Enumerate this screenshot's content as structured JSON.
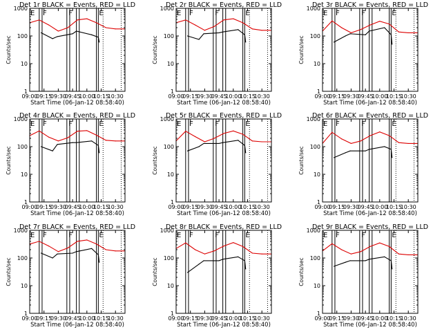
{
  "colors": {
    "events": "#000000",
    "lld": "#dd0000",
    "axes": "#000000",
    "background": "#ffffff"
  },
  "chart_data": [
    {
      "type": "line",
      "title": "Det 1r BLACK = Events, RED = LLD",
      "xlabel": "Start Time (06-Jan-12 08:58:40)",
      "ylabel": "Counts/sec",
      "xlim": [
        "09:00",
        "10:40"
      ],
      "ylim": [
        1,
        1000
      ],
      "yscale": "log",
      "x_ticks": [
        "09:00",
        "09:15",
        "09:30",
        "09:45",
        "10:00",
        "10:15",
        "10:30"
      ],
      "y_ticks": [
        "1",
        "10",
        "100",
        "1000"
      ],
      "flags": [
        {
          "label": "E",
          "time": "09:00"
        },
        {
          "label": "F",
          "time": "09:13"
        },
        {
          "label": "F",
          "time": "09:40"
        },
        {
          "label": "E",
          "time": "10:12"
        }
      ],
      "intervals": [
        [
          "09:10",
          "09:13"
        ],
        [
          "09:39",
          "09:42"
        ],
        [
          "09:49",
          "09:52"
        ],
        [
          "10:10",
          "10:12"
        ]
      ],
      "dotted": [
        "10:17",
        "10:36"
      ],
      "series": [
        {
          "name": "Events",
          "color": "#000000",
          "x": [
            "09:12",
            "09:24",
            "09:29",
            "09:45",
            "09:49",
            "10:05",
            "10:12",
            "10:13"
          ],
          "y": [
            130,
            80,
            95,
            120,
            150,
            110,
            90,
            60
          ]
        },
        {
          "name": "LLD",
          "color": "#dd0000",
          "x": [
            "09:00",
            "09:10",
            "09:20",
            "09:30",
            "09:40",
            "09:50",
            "10:00",
            "10:10",
            "10:20",
            "10:30",
            "10:40"
          ],
          "y": [
            300,
            380,
            250,
            150,
            200,
            380,
            420,
            300,
            200,
            180,
            180
          ]
        }
      ]
    },
    {
      "type": "line",
      "title": "Det 2r BLACK = Events, RED = LLD",
      "xlabel": "Start Time (06-Jan-12 08:58:40)",
      "ylabel": "Counts/sec",
      "xlim": [
        "09:00",
        "10:40"
      ],
      "ylim": [
        1,
        1000
      ],
      "yscale": "log",
      "x_ticks": [
        "09:00",
        "09:15",
        "09:30",
        "09:45",
        "10:00",
        "10:15",
        "10:30"
      ],
      "y_ticks": [
        "1",
        "10",
        "100",
        "1000"
      ],
      "flags": [
        {
          "label": "E",
          "time": "09:00"
        },
        {
          "label": "F",
          "time": "09:13"
        },
        {
          "label": "F",
          "time": "09:40"
        },
        {
          "label": "E",
          "time": "10:12"
        }
      ],
      "intervals": [
        [
          "09:10",
          "09:13"
        ],
        [
          "09:39",
          "09:42"
        ],
        [
          "09:49",
          "09:52"
        ],
        [
          "10:10",
          "10:12"
        ]
      ],
      "dotted": [
        "10:17",
        "10:36"
      ],
      "series": [
        {
          "name": "Events",
          "color": "#000000",
          "x": [
            "09:12",
            "09:24",
            "09:29",
            "09:45",
            "09:49",
            "10:05",
            "10:12",
            "10:13"
          ],
          "y": [
            100,
            75,
            120,
            130,
            140,
            170,
            110,
            60
          ]
        },
        {
          "name": "LLD",
          "color": "#dd0000",
          "x": [
            "09:00",
            "09:10",
            "09:20",
            "09:30",
            "09:40",
            "09:50",
            "10:00",
            "10:10",
            "10:20",
            "10:30",
            "10:40"
          ],
          "y": [
            300,
            380,
            250,
            160,
            220,
            380,
            420,
            300,
            180,
            160,
            160
          ]
        }
      ]
    },
    {
      "type": "line",
      "title": "Det 3r BLACK = Events, RED = LLD",
      "xlabel": "Start Time (06-Jan-12 08:58:40)",
      "ylabel": "Counts/sec",
      "xlim": [
        "09:00",
        "10:40"
      ],
      "ylim": [
        1,
        1000
      ],
      "yscale": "log",
      "x_ticks": [
        "09:00",
        "09:15",
        "09:30",
        "09:45",
        "10:00",
        "10:15",
        "10:30"
      ],
      "y_ticks": [
        "1",
        "10",
        "100",
        "1000"
      ],
      "flags": [
        {
          "label": "E",
          "time": "09:00"
        },
        {
          "label": "F",
          "time": "09:13"
        },
        {
          "label": "F",
          "time": "09:40"
        },
        {
          "label": "E",
          "time": "10:12"
        }
      ],
      "intervals": [
        [
          "09:10",
          "09:13"
        ],
        [
          "09:39",
          "09:42"
        ],
        [
          "09:49",
          "09:52"
        ],
        [
          "10:10",
          "10:12"
        ]
      ],
      "dotted": [
        "10:17",
        "10:36"
      ],
      "series": [
        {
          "name": "Events",
          "color": "#000000",
          "x": [
            "09:12",
            "09:24",
            "09:29",
            "09:45",
            "09:49",
            "10:05",
            "10:12",
            "10:13"
          ],
          "y": [
            60,
            100,
            120,
            110,
            150,
            200,
            110,
            50
          ]
        },
        {
          "name": "LLD",
          "color": "#dd0000",
          "x": [
            "09:00",
            "09:10",
            "09:20",
            "09:30",
            "09:40",
            "09:50",
            "10:00",
            "10:10",
            "10:20",
            "10:30",
            "10:40"
          ],
          "y": [
            150,
            350,
            200,
            130,
            170,
            250,
            340,
            270,
            140,
            130,
            130
          ]
        }
      ]
    },
    {
      "type": "line",
      "title": "Det 4r BLACK = Events, RED = LLD",
      "xlabel": "Start Time (06-Jan-12 08:58:40)",
      "ylabel": "Counts/sec",
      "xlim": [
        "09:00",
        "10:40"
      ],
      "ylim": [
        1,
        1000
      ],
      "yscale": "log",
      "x_ticks": [
        "09:00",
        "09:15",
        "09:30",
        "09:45",
        "10:00",
        "10:15",
        "10:30"
      ],
      "y_ticks": [
        "1",
        "10",
        "100",
        "1000"
      ],
      "flags": [
        {
          "label": "E",
          "time": "09:00"
        },
        {
          "label": "F",
          "time": "09:13"
        },
        {
          "label": "F",
          "time": "09:40"
        },
        {
          "label": "E",
          "time": "10:12"
        }
      ],
      "intervals": [
        [
          "09:10",
          "09:13"
        ],
        [
          "09:39",
          "09:42"
        ],
        [
          "09:49",
          "09:52"
        ],
        [
          "10:10",
          "10:12"
        ]
      ],
      "dotted": [
        "10:17",
        "10:36"
      ],
      "series": [
        {
          "name": "Events",
          "color": "#000000",
          "x": [
            "09:12",
            "09:24",
            "09:29",
            "09:45",
            "09:49",
            "10:05",
            "10:12",
            "10:13"
          ],
          "y": [
            100,
            70,
            120,
            140,
            140,
            160,
            110,
            60
          ]
        },
        {
          "name": "LLD",
          "color": "#dd0000",
          "x": [
            "09:00",
            "09:10",
            "09:20",
            "09:30",
            "09:40",
            "09:50",
            "10:00",
            "10:10",
            "10:20",
            "10:30",
            "10:40"
          ],
          "y": [
            250,
            370,
            220,
            160,
            210,
            360,
            380,
            260,
            170,
            160,
            160
          ]
        }
      ]
    },
    {
      "type": "line",
      "title": "Det 5r BLACK = Events, RED = LLD",
      "xlabel": "Start Time (06-Jan-12 08:58:40)",
      "ylabel": "Counts/sec",
      "xlim": [
        "09:00",
        "10:40"
      ],
      "ylim": [
        1,
        1000
      ],
      "yscale": "log",
      "x_ticks": [
        "09:00",
        "09:15",
        "09:30",
        "09:45",
        "10:00",
        "10:15",
        "10:30"
      ],
      "y_ticks": [
        "1",
        "10",
        "100",
        "1000"
      ],
      "flags": [
        {
          "label": "E",
          "time": "09:00"
        },
        {
          "label": "F",
          "time": "09:13"
        },
        {
          "label": "F",
          "time": "09:40"
        },
        {
          "label": "E",
          "time": "10:12"
        }
      ],
      "intervals": [
        [
          "09:10",
          "09:13"
        ],
        [
          "09:39",
          "09:42"
        ],
        [
          "09:49",
          "09:52"
        ],
        [
          "10:10",
          "10:12"
        ]
      ],
      "dotted": [
        "10:17",
        "10:36"
      ],
      "series": [
        {
          "name": "Events",
          "color": "#000000",
          "x": [
            "09:12",
            "09:24",
            "09:29",
            "09:45",
            "09:49",
            "10:05",
            "10:12",
            "10:13"
          ],
          "y": [
            70,
            100,
            130,
            130,
            140,
            170,
            110,
            60
          ]
        },
        {
          "name": "LLD",
          "color": "#dd0000",
          "x": [
            "09:00",
            "09:10",
            "09:20",
            "09:30",
            "09:40",
            "09:50",
            "10:00",
            "10:10",
            "10:20",
            "10:30",
            "10:40"
          ],
          "y": [
            160,
            360,
            230,
            150,
            200,
            300,
            370,
            280,
            160,
            150,
            150
          ]
        }
      ]
    },
    {
      "type": "line",
      "title": "Det 6r BLACK = Events, RED = LLD",
      "xlabel": "Start Time (06-Jan-12 08:58:40)",
      "ylabel": "Counts/sec",
      "xlim": [
        "09:00",
        "10:40"
      ],
      "ylim": [
        1,
        1000
      ],
      "yscale": "log",
      "x_ticks": [
        "09:00",
        "09:15",
        "09:30",
        "09:45",
        "10:00",
        "10:15",
        "10:30"
      ],
      "y_ticks": [
        "1",
        "10",
        "100",
        "1000"
      ],
      "flags": [
        {
          "label": "E",
          "time": "09:00"
        },
        {
          "label": "F",
          "time": "09:13"
        },
        {
          "label": "F",
          "time": "09:40"
        },
        {
          "label": "E",
          "time": "10:12"
        }
      ],
      "intervals": [
        [
          "09:10",
          "09:13"
        ],
        [
          "09:39",
          "09:42"
        ],
        [
          "09:49",
          "09:52"
        ],
        [
          "10:10",
          "10:12"
        ]
      ],
      "dotted": [
        "10:17",
        "10:36"
      ],
      "series": [
        {
          "name": "Events",
          "color": "#000000",
          "x": [
            "09:12",
            "09:24",
            "09:29",
            "09:45",
            "09:49",
            "10:05",
            "10:12",
            "10:13"
          ],
          "y": [
            40,
            60,
            70,
            70,
            80,
            100,
            80,
            40
          ]
        },
        {
          "name": "LLD",
          "color": "#dd0000",
          "x": [
            "09:00",
            "09:10",
            "09:20",
            "09:30",
            "09:40",
            "09:50",
            "10:00",
            "10:10",
            "10:20",
            "10:30",
            "10:40"
          ],
          "y": [
            130,
            330,
            190,
            130,
            160,
            250,
            340,
            250,
            140,
            130,
            130
          ]
        }
      ]
    },
    {
      "type": "line",
      "title": "Det 7r BLACK = Events, RED = LLD",
      "xlabel": "Start Time (06-Jan-12 08:58:40)",
      "ylabel": "Counts/sec",
      "xlim": [
        "09:00",
        "10:40"
      ],
      "ylim": [
        1,
        1000
      ],
      "yscale": "log",
      "x_ticks": [
        "09:00",
        "09:15",
        "09:30",
        "09:45",
        "10:00",
        "10:15",
        "10:30"
      ],
      "y_ticks": [
        "1",
        "10",
        "100",
        "1000"
      ],
      "flags": [
        {
          "label": "E",
          "time": "09:00"
        },
        {
          "label": "F",
          "time": "09:13"
        },
        {
          "label": "F",
          "time": "09:40"
        },
        {
          "label": "E",
          "time": "10:12"
        }
      ],
      "intervals": [
        [
          "09:10",
          "09:13"
        ],
        [
          "09:39",
          "09:42"
        ],
        [
          "09:49",
          "09:52"
        ],
        [
          "10:10",
          "10:12"
        ]
      ],
      "dotted": [
        "10:17",
        "10:36"
      ],
      "series": [
        {
          "name": "Events",
          "color": "#000000",
          "x": [
            "09:12",
            "09:24",
            "09:29",
            "09:45",
            "09:49",
            "10:05",
            "10:12",
            "10:13"
          ],
          "y": [
            150,
            100,
            140,
            150,
            170,
            220,
            130,
            70
          ]
        },
        {
          "name": "LLD",
          "color": "#dd0000",
          "x": [
            "09:00",
            "09:10",
            "09:20",
            "09:30",
            "09:40",
            "09:50",
            "10:00",
            "10:10",
            "10:20",
            "10:30",
            "10:40"
          ],
          "y": [
            320,
            400,
            270,
            170,
            230,
            400,
            450,
            320,
            200,
            180,
            180
          ]
        }
      ]
    },
    {
      "type": "line",
      "title": "Det 8r BLACK = Events, RED = LLD",
      "xlabel": "Start Time (06-Jan-12 08:58:40)",
      "ylabel": "Counts/sec",
      "xlim": [
        "09:00",
        "10:40"
      ],
      "ylim": [
        1,
        1000
      ],
      "yscale": "log",
      "x_ticks": [
        "09:00",
        "09:15",
        "09:30",
        "09:45",
        "10:00",
        "10:15",
        "10:30"
      ],
      "y_ticks": [
        "1",
        "10",
        "100",
        "1000"
      ],
      "flags": [
        {
          "label": "E",
          "time": "09:00"
        },
        {
          "label": "F",
          "time": "09:13"
        },
        {
          "label": "F",
          "time": "09:40"
        },
        {
          "label": "E",
          "time": "10:12"
        }
      ],
      "intervals": [
        [
          "09:10",
          "09:13"
        ],
        [
          "09:39",
          "09:42"
        ],
        [
          "09:49",
          "09:52"
        ],
        [
          "10:10",
          "10:12"
        ]
      ],
      "dotted": [
        "10:17",
        "10:36"
      ],
      "series": [
        {
          "name": "Events",
          "color": "#000000",
          "x": [
            "09:12",
            "09:24",
            "09:29",
            "09:45",
            "09:49",
            "10:05",
            "10:12",
            "10:13"
          ],
          "y": [
            30,
            60,
            80,
            80,
            90,
            110,
            80,
            40
          ]
        },
        {
          "name": "LLD",
          "color": "#dd0000",
          "x": [
            "09:00",
            "09:10",
            "09:20",
            "09:30",
            "09:40",
            "09:50",
            "10:00",
            "10:10",
            "10:20",
            "10:30",
            "10:40"
          ],
          "y": [
            220,
            350,
            200,
            140,
            180,
            270,
            360,
            260,
            150,
            140,
            140
          ]
        }
      ]
    },
    {
      "type": "line",
      "title": "Det 9r BLACK = Events, RED = LLD",
      "xlabel": "Start Time (06-Jan-12 08:58:40)",
      "ylabel": "Counts/sec",
      "xlim": [
        "09:00",
        "10:40"
      ],
      "ylim": [
        1,
        1000
      ],
      "yscale": "log",
      "x_ticks": [
        "09:00",
        "09:15",
        "09:30",
        "09:45",
        "10:00",
        "10:15",
        "10:30"
      ],
      "y_ticks": [
        "1",
        "10",
        "100",
        "1000"
      ],
      "flags": [
        {
          "label": "E",
          "time": "09:00"
        },
        {
          "label": "F",
          "time": "09:13"
        },
        {
          "label": "F",
          "time": "09:40"
        },
        {
          "label": "E",
          "time": "10:12"
        }
      ],
      "intervals": [
        [
          "09:10",
          "09:13"
        ],
        [
          "09:39",
          "09:42"
        ],
        [
          "09:49",
          "09:52"
        ],
        [
          "10:10",
          "10:12"
        ]
      ],
      "dotted": [
        "10:17",
        "10:36"
      ],
      "series": [
        {
          "name": "Events",
          "color": "#000000",
          "x": [
            "09:12",
            "09:24",
            "09:29",
            "09:45",
            "09:49",
            "10:05",
            "10:12",
            "10:13"
          ],
          "y": [
            50,
            70,
            80,
            80,
            90,
            110,
            80,
            40
          ]
        },
        {
          "name": "LLD",
          "color": "#dd0000",
          "x": [
            "09:00",
            "09:10",
            "09:20",
            "09:30",
            "09:40",
            "09:50",
            "10:00",
            "10:10",
            "10:20",
            "10:30",
            "10:40"
          ],
          "y": [
            180,
            330,
            200,
            140,
            170,
            260,
            350,
            260,
            140,
            130,
            130
          ]
        }
      ]
    }
  ]
}
